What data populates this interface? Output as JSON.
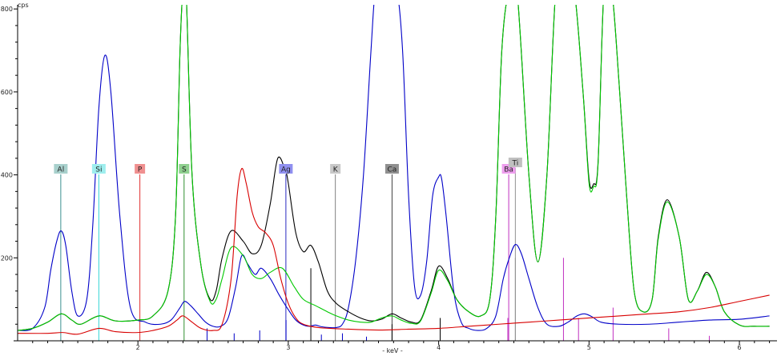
{
  "chart_data": {
    "type": "line",
    "title": "",
    "xlabel": "- keV -",
    "ylabel": "cps",
    "xlim": [
      1.2,
      6.25
    ],
    "ylim": [
      0,
      810
    ],
    "x_ticks": [
      {
        "value": 2,
        "label": "2"
      },
      {
        "value": 3,
        "label": "3"
      },
      {
        "value": 4,
        "label": "4"
      },
      {
        "value": 5,
        "label": "5"
      },
      {
        "value": 6,
        "label": "6"
      }
    ],
    "y_ticks": [
      {
        "value": 200,
        "label": "200"
      },
      {
        "value": 400,
        "label": "400"
      },
      {
        "value": 600,
        "label": "600"
      },
      {
        "value": 800,
        "label": "800"
      }
    ],
    "grid": false,
    "legend": "none",
    "element_markers": [
      {
        "symbol": "Al",
        "energy": 1.487,
        "line_color": "#3a8f8f",
        "box_color": "#a8d0cc",
        "line_top": 420
      },
      {
        "symbol": "Si",
        "energy": 1.74,
        "line_color": "#33d6d6",
        "box_color": "#9eeeee",
        "line_top": 420
      },
      {
        "symbol": "P",
        "energy": 2.013,
        "line_color": "#e03030",
        "box_color": "#f09090",
        "line_top": 420
      },
      {
        "symbol": "S",
        "energy": 2.307,
        "line_color": "#2f8f2f",
        "box_color": "#8fd08f",
        "line_top": 420
      },
      {
        "symbol": "Ag",
        "energy": 2.984,
        "line_color": "#2a2ac0",
        "box_color": "#9090f0",
        "line_top": 420
      },
      {
        "symbol": "K",
        "energy": 3.313,
        "line_color": "#808080",
        "box_color": "#c8c8c8",
        "line_top": 420
      },
      {
        "symbol": "Ca",
        "energy": 3.69,
        "line_color": "#404040",
        "box_color": "#909090",
        "line_top": 420
      },
      {
        "symbol": "Ba",
        "energy": 4.466,
        "line_color": "#c030c0",
        "box_color": "#ee9eee",
        "line_top": 420
      },
      {
        "symbol": "Ti",
        "energy": 4.51,
        "line_color": "#909090",
        "box_color": "#c0c0c0",
        "line_top": 445
      }
    ],
    "series": [
      {
        "color": "#0000c8",
        "x": [
          1.2,
          1.3,
          1.38,
          1.42,
          1.46,
          1.49,
          1.52,
          1.56,
          1.6,
          1.66,
          1.7,
          1.74,
          1.78,
          1.82,
          1.88,
          1.95,
          2.05,
          2.15,
          2.22,
          2.28,
          2.31,
          2.35,
          2.4,
          2.45,
          2.5,
          2.55,
          2.6,
          2.65,
          2.69,
          2.73,
          2.78,
          2.82,
          2.88,
          2.94,
          3.0,
          3.05,
          3.1,
          3.14,
          3.18,
          3.22,
          3.27,
          3.32,
          3.36,
          3.4,
          3.45,
          3.5,
          3.55,
          3.58,
          3.62,
          3.67,
          3.72,
          3.76,
          3.8,
          3.84,
          3.88,
          3.92,
          3.96,
          4.0,
          4.02,
          4.05,
          4.1,
          4.15,
          4.2,
          4.26,
          4.32,
          4.38,
          4.43,
          4.47,
          4.51,
          4.55,
          4.6,
          4.66,
          4.72,
          4.8,
          4.86,
          4.92,
          4.97,
          5.02,
          5.08,
          5.2,
          5.4,
          5.6,
          5.8,
          6.0,
          6.2
        ],
        "y": [
          25,
          30,
          80,
          170,
          240,
          265,
          230,
          120,
          60,
          100,
          280,
          560,
          688,
          600,
          300,
          80,
          45,
          40,
          50,
          80,
          95,
          85,
          65,
          45,
          35,
          35,
          55,
          130,
          205,
          185,
          160,
          175,
          150,
          110,
          75,
          50,
          38,
          35,
          38,
          34,
          32,
          32,
          40,
          80,
          200,
          400,
          700,
          850,
          850,
          850,
          850,
          700,
          350,
          130,
          110,
          190,
          350,
          395,
          390,
          300,
          120,
          45,
          30,
          25,
          30,
          60,
          150,
          200,
          232,
          210,
          150,
          80,
          40,
          35,
          45,
          60,
          65,
          58,
          45,
          40,
          40,
          45,
          50,
          52,
          60
        ]
      },
      {
        "color": "#000000",
        "x": [
          1.2,
          1.3,
          1.4,
          1.49,
          1.56,
          1.62,
          1.74,
          1.85,
          2.0,
          2.1,
          2.2,
          2.25,
          2.28,
          2.3,
          2.32,
          2.36,
          2.42,
          2.48,
          2.52,
          2.56,
          2.62,
          2.7,
          2.76,
          2.82,
          2.88,
          2.93,
          2.98,
          3.0,
          3.05,
          3.1,
          3.15,
          3.2,
          3.26,
          3.32,
          3.4,
          3.48,
          3.55,
          3.62,
          3.69,
          3.75,
          3.82,
          3.88,
          3.95,
          4.0,
          4.06,
          4.12,
          4.2,
          4.28,
          4.34,
          4.38,
          4.42,
          4.47,
          4.52,
          4.6,
          4.66,
          4.72,
          4.78,
          4.84,
          4.9,
          4.96,
          5.0,
          5.03,
          5.06,
          5.1,
          5.15,
          5.2,
          5.25,
          5.3,
          5.36,
          5.42,
          5.46,
          5.52,
          5.6,
          5.66,
          5.72,
          5.78,
          5.84,
          5.9,
          6.0,
          6.1,
          6.2
        ],
        "y": [
          25,
          30,
          45,
          65,
          50,
          40,
          60,
          48,
          50,
          60,
          120,
          300,
          700,
          850,
          850,
          400,
          180,
          100,
          120,
          200,
          265,
          240,
          210,
          230,
          330,
          440,
          410,
          380,
          260,
          215,
          230,
          190,
          120,
          90,
          70,
          55,
          48,
          52,
          65,
          55,
          45,
          50,
          120,
          180,
          150,
          100,
          70,
          60,
          100,
          300,
          700,
          850,
          850,
          400,
          190,
          400,
          850,
          850,
          850,
          600,
          390,
          378,
          430,
          850,
          850,
          620,
          350,
          120,
          70,
          100,
          250,
          340,
          250,
          100,
          120,
          165,
          130,
          70,
          38,
          35,
          35
        ]
      },
      {
        "color": "#00c800",
        "x": [
          1.2,
          1.3,
          1.4,
          1.49,
          1.56,
          1.62,
          1.74,
          1.85,
          2.0,
          2.1,
          2.2,
          2.25,
          2.28,
          2.3,
          2.32,
          2.36,
          2.42,
          2.48,
          2.52,
          2.56,
          2.62,
          2.7,
          2.76,
          2.82,
          2.88,
          2.96,
          3.04,
          3.1,
          3.18,
          3.26,
          3.32,
          3.4,
          3.48,
          3.55,
          3.62,
          3.69,
          3.75,
          3.82,
          3.88,
          3.95,
          4.0,
          4.06,
          4.12,
          4.2,
          4.28,
          4.34,
          4.38,
          4.42,
          4.47,
          4.52,
          4.6,
          4.66,
          4.72,
          4.78,
          4.84,
          4.9,
          4.96,
          5.0,
          5.03,
          5.06,
          5.1,
          5.15,
          5.2,
          5.25,
          5.3,
          5.36,
          5.42,
          5.46,
          5.52,
          5.6,
          5.66,
          5.72,
          5.78,
          5.84,
          5.9,
          6.0,
          6.1,
          6.2
        ],
        "y": [
          25,
          30,
          45,
          65,
          50,
          40,
          60,
          48,
          50,
          60,
          120,
          300,
          700,
          850,
          850,
          400,
          180,
          95,
          100,
          150,
          225,
          205,
          160,
          150,
          165,
          175,
          130,
          100,
          85,
          70,
          60,
          50,
          45,
          45,
          55,
          60,
          50,
          42,
          48,
          115,
          170,
          145,
          100,
          70,
          60,
          100,
          300,
          700,
          850,
          850,
          400,
          190,
          400,
          850,
          850,
          850,
          600,
          380,
          372,
          425,
          850,
          850,
          620,
          350,
          120,
          70,
          100,
          245,
          335,
          250,
          100,
          120,
          160,
          130,
          70,
          38,
          35,
          35
        ]
      },
      {
        "color": "#d80000",
        "x": [
          1.2,
          1.4,
          1.5,
          1.6,
          1.74,
          1.85,
          2.0,
          2.1,
          2.2,
          2.26,
          2.3,
          2.36,
          2.42,
          2.5,
          2.56,
          2.62,
          2.66,
          2.69,
          2.72,
          2.76,
          2.8,
          2.85,
          2.9,
          2.95,
          3.0,
          3.05,
          3.1,
          3.2,
          3.4,
          3.6,
          3.8,
          4.0,
          4.2,
          4.4,
          4.6,
          4.8,
          5.0,
          5.2,
          5.4,
          5.6,
          5.8,
          6.0,
          6.2
        ],
        "y": [
          18,
          18,
          20,
          16,
          30,
          22,
          20,
          25,
          35,
          50,
          60,
          45,
          30,
          25,
          40,
          150,
          350,
          415,
          380,
          310,
          275,
          260,
          230,
          150,
          90,
          55,
          40,
          32,
          28,
          26,
          28,
          30,
          35,
          40,
          45,
          50,
          55,
          60,
          65,
          70,
          80,
          95,
          110
        ]
      }
    ],
    "impulse_lines": [
      {
        "energy": 2.46,
        "height": 30,
        "color": "#0000c8"
      },
      {
        "energy": 2.64,
        "height": 18,
        "color": "#0000c8"
      },
      {
        "energy": 2.81,
        "height": 25,
        "color": "#0000c8"
      },
      {
        "energy": 2.985,
        "height": 50,
        "color": "#0000c8"
      },
      {
        "energy": 3.15,
        "height": 175,
        "color": "#000000"
      },
      {
        "energy": 3.22,
        "height": 15,
        "color": "#0000c8"
      },
      {
        "energy": 3.36,
        "height": 18,
        "color": "#0000c8"
      },
      {
        "energy": 3.52,
        "height": 10,
        "color": "#0000c8"
      },
      {
        "energy": 3.69,
        "height": 40,
        "color": "#000000"
      },
      {
        "energy": 4.01,
        "height": 55,
        "color": "#000000"
      },
      {
        "energy": 4.46,
        "height": 55,
        "color": "#c030c0"
      },
      {
        "energy": 4.51,
        "height": 200,
        "color": "#909090"
      },
      {
        "energy": 4.83,
        "height": 200,
        "color": "#c030c0"
      },
      {
        "energy": 4.93,
        "height": 55,
        "color": "#c030c0"
      },
      {
        "energy": 5.16,
        "height": 80,
        "color": "#c030c0"
      },
      {
        "energy": 5.53,
        "height": 30,
        "color": "#c030c0"
      },
      {
        "energy": 5.8,
        "height": 12,
        "color": "#c030c0"
      }
    ]
  }
}
